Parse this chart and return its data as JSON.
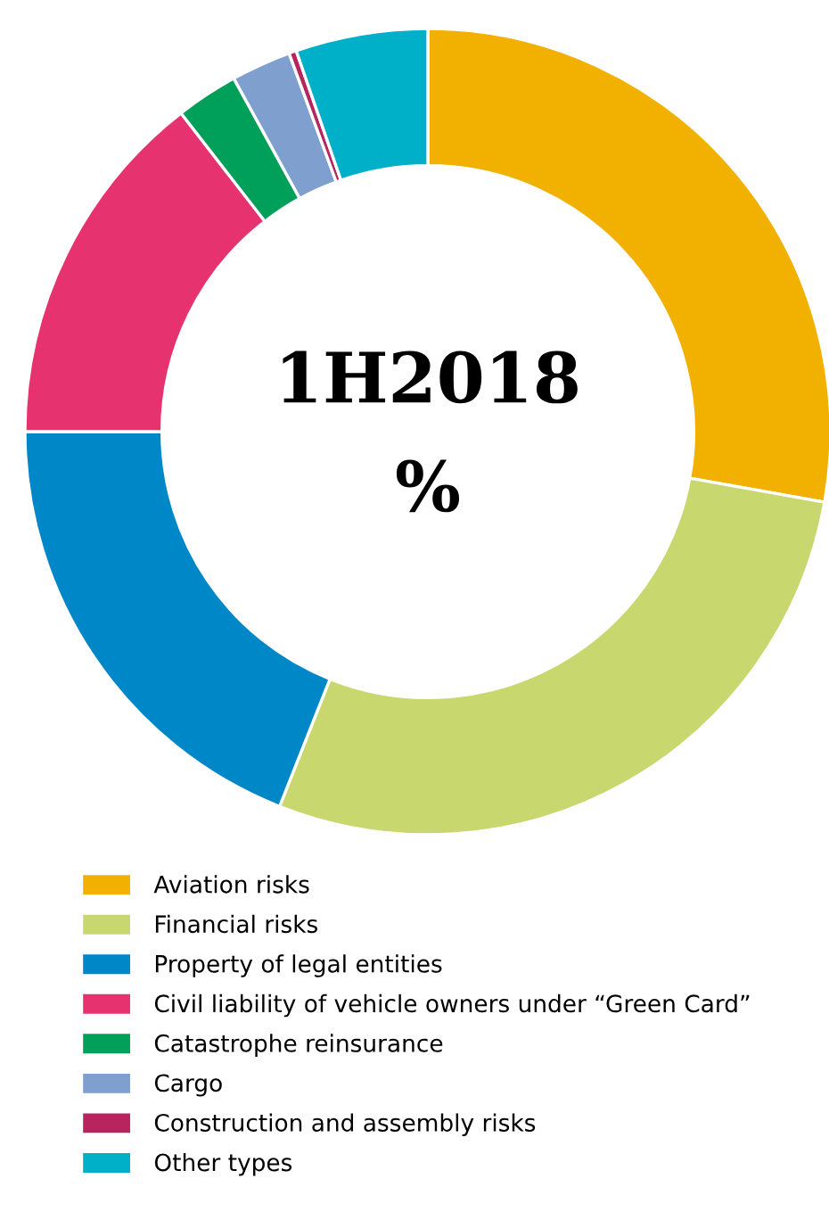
{
  "chart_data": {
    "type": "donut",
    "title": "1H2018",
    "subtitle": "%",
    "categories": [
      "Aviation risks",
      "Financial risks",
      "Property of legal entities",
      "Civil liability of vehicle owners under “Green Card”",
      "Catastrophe reinsurance",
      "Cargo",
      "Construction and assembly risks",
      "Other types"
    ],
    "values": [
      27.8,
      28.2,
      19.0,
      14.5,
      2.5,
      2.4,
      0.3,
      5.3
    ],
    "colors": [
      "#f2b000",
      "#c8d86e",
      "#0087c8",
      "#e6336f",
      "#00a05a",
      "#7f9fcf",
      "#b8245e",
      "#00afc8"
    ],
    "legend": "bottom"
  }
}
